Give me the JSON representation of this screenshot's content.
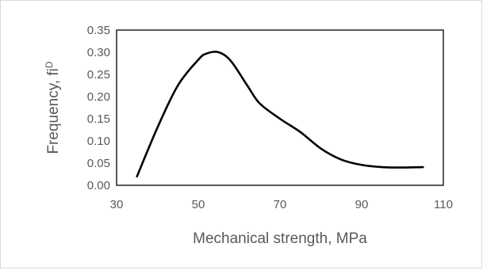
{
  "chart_data": {
    "type": "line",
    "title": "",
    "xlabel": "Mechanical strength, MPa",
    "ylabel": "Frequency, fi",
    "ylabel_superscript": "D",
    "xlim": [
      30,
      110
    ],
    "ylim": [
      0,
      0.35
    ],
    "xticks": [
      "30",
      "50",
      "70",
      "90",
      "110"
    ],
    "yticks": [
      "0.00",
      "0.05",
      "0.10",
      "0.15",
      "0.20",
      "0.25",
      "0.30",
      "0.35"
    ],
    "grid": false,
    "legend": "none",
    "line_color": "#000000",
    "series": [
      {
        "x": [
          35,
          40,
          45,
          50,
          52,
          55,
          58,
          62,
          65,
          70,
          75,
          80,
          85,
          90,
          95,
          100,
          105
        ],
        "y": [
          0.02,
          0.13,
          0.225,
          0.283,
          0.297,
          0.3,
          0.28,
          0.225,
          0.185,
          0.15,
          0.12,
          0.083,
          0.058,
          0.046,
          0.041,
          0.04,
          0.041
        ]
      }
    ]
  }
}
